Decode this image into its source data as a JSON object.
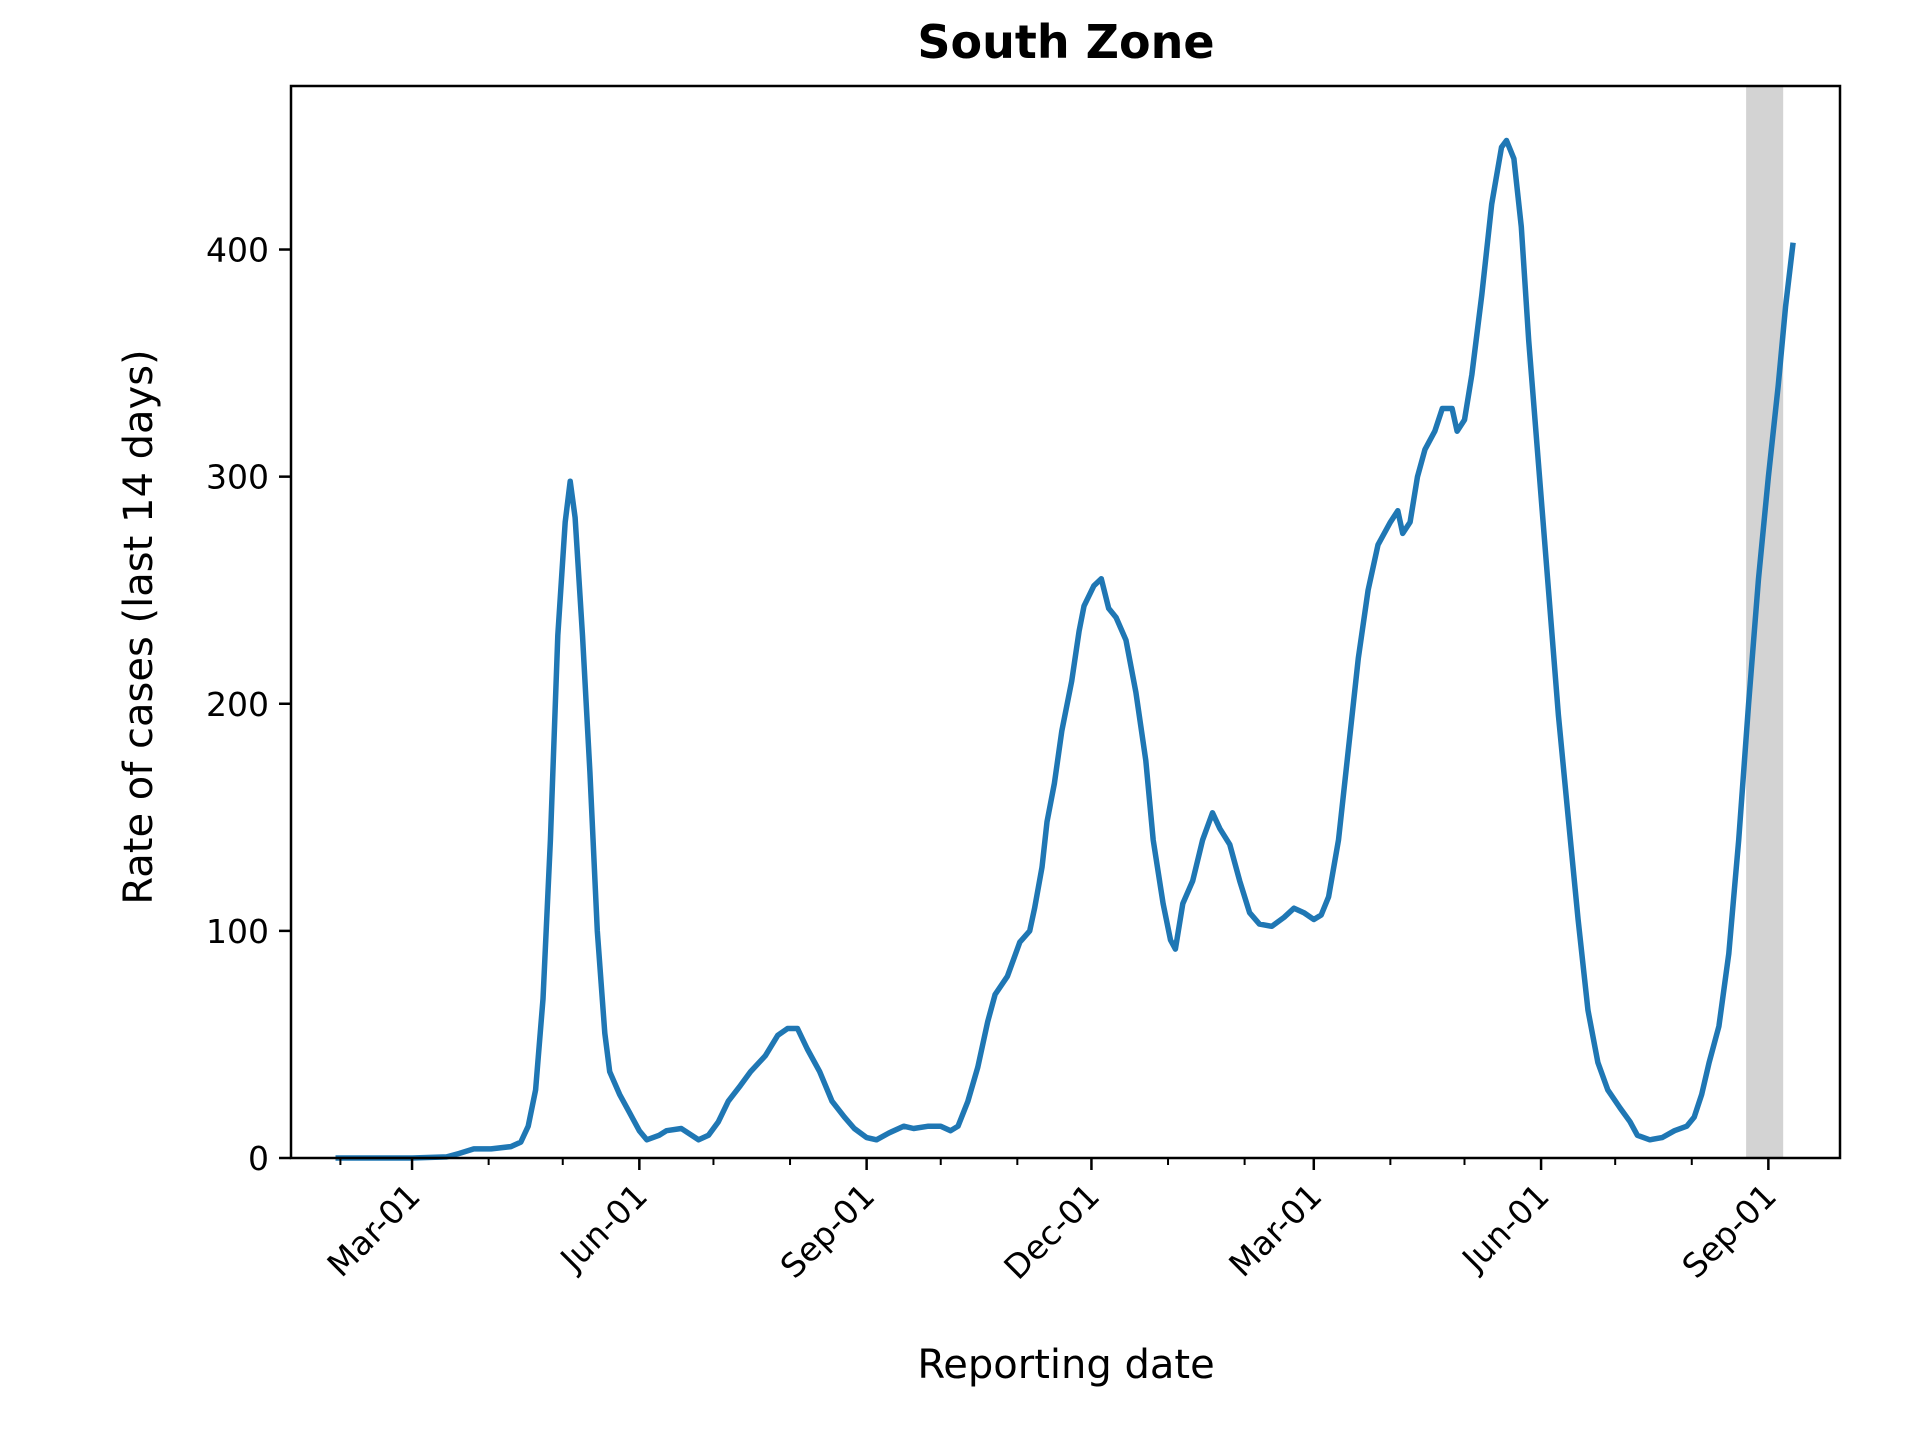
{
  "chart_data": {
    "type": "line",
    "title": "South Zone",
    "xlabel": "Reporting date",
    "ylabel": "Rate of cases (last 14 days)",
    "ylim": [
      0,
      472
    ],
    "xlim": [
      "2020-01-12",
      "2021-09-30"
    ],
    "y_ticks": [
      0,
      100,
      200,
      300,
      400
    ],
    "y_tick_labels": [
      "0",
      "100",
      "200",
      "300",
      "400"
    ],
    "x_ticks": [
      "2020-03-01",
      "2020-06-01",
      "2020-09-01",
      "2020-12-01",
      "2021-03-01",
      "2021-06-01",
      "2021-09-01"
    ],
    "x_tick_labels": [
      "Mar-01",
      "Jun-01",
      "Sep-01",
      "Dec-01",
      "Mar-01",
      "Jun-01",
      "Sep-01"
    ],
    "grid": false,
    "shaded_region": {
      "start": "2021-08-23",
      "end": "2021-09-07",
      "color": "#d3d3d3"
    },
    "series": [
      {
        "color": "#1f77b4",
        "points": [
          [
            "2020-01-30",
            0
          ],
          [
            "2020-02-15",
            0
          ],
          [
            "2020-03-01",
            0
          ],
          [
            "2020-03-15",
            0.5
          ],
          [
            "2020-03-20",
            2
          ],
          [
            "2020-03-26",
            4
          ],
          [
            "2020-04-02",
            4
          ],
          [
            "2020-04-10",
            5
          ],
          [
            "2020-04-14",
            7
          ],
          [
            "2020-04-17",
            14
          ],
          [
            "2020-04-20",
            30
          ],
          [
            "2020-04-23",
            70
          ],
          [
            "2020-04-26",
            140
          ],
          [
            "2020-04-29",
            230
          ],
          [
            "2020-05-02",
            280
          ],
          [
            "2020-05-04",
            298
          ],
          [
            "2020-05-06",
            282
          ],
          [
            "2020-05-09",
            230
          ],
          [
            "2020-05-12",
            170
          ],
          [
            "2020-05-15",
            100
          ],
          [
            "2020-05-18",
            55
          ],
          [
            "2020-05-20",
            38
          ],
          [
            "2020-05-24",
            28
          ],
          [
            "2020-05-28",
            20
          ],
          [
            "2020-06-01",
            12
          ],
          [
            "2020-06-04",
            8
          ],
          [
            "2020-06-09",
            10
          ],
          [
            "2020-06-12",
            12
          ],
          [
            "2020-06-18",
            13
          ],
          [
            "2020-06-25",
            8
          ],
          [
            "2020-06-29",
            10
          ],
          [
            "2020-07-03",
            16
          ],
          [
            "2020-07-07",
            25
          ],
          [
            "2020-07-12",
            32
          ],
          [
            "2020-07-16",
            38
          ],
          [
            "2020-07-22",
            45
          ],
          [
            "2020-07-27",
            54
          ],
          [
            "2020-07-31",
            57
          ],
          [
            "2020-08-04",
            57
          ],
          [
            "2020-08-08",
            48
          ],
          [
            "2020-08-13",
            38
          ],
          [
            "2020-08-18",
            25
          ],
          [
            "2020-08-23",
            18
          ],
          [
            "2020-08-27",
            13
          ],
          [
            "2020-09-01",
            9
          ],
          [
            "2020-09-05",
            8
          ],
          [
            "2020-09-10",
            11
          ],
          [
            "2020-09-16",
            14
          ],
          [
            "2020-09-20",
            13
          ],
          [
            "2020-09-26",
            14
          ],
          [
            "2020-10-01",
            14
          ],
          [
            "2020-10-05",
            12
          ],
          [
            "2020-10-08",
            14
          ],
          [
            "2020-10-12",
            25
          ],
          [
            "2020-10-16",
            40
          ],
          [
            "2020-10-20",
            60
          ],
          [
            "2020-10-23",
            72
          ],
          [
            "2020-10-28",
            80
          ],
          [
            "2020-11-02",
            95
          ],
          [
            "2020-11-06",
            100
          ],
          [
            "2020-11-08",
            110
          ],
          [
            "2020-11-11",
            128
          ],
          [
            "2020-11-13",
            148
          ],
          [
            "2020-11-16",
            165
          ],
          [
            "2020-11-19",
            188
          ],
          [
            "2020-11-23",
            210
          ],
          [
            "2020-11-26",
            232
          ],
          [
            "2020-11-28",
            243
          ],
          [
            "2020-12-02",
            252
          ],
          [
            "2020-12-05",
            255
          ],
          [
            "2020-12-08",
            242
          ],
          [
            "2020-12-11",
            238
          ],
          [
            "2020-12-15",
            228
          ],
          [
            "2020-12-19",
            205
          ],
          [
            "2020-12-23",
            175
          ],
          [
            "2020-12-26",
            140
          ],
          [
            "2020-12-30",
            112
          ],
          [
            "2021-01-02",
            96
          ],
          [
            "2021-01-04",
            92
          ],
          [
            "2021-01-07",
            112
          ],
          [
            "2021-01-11",
            122
          ],
          [
            "2021-01-15",
            140
          ],
          [
            "2021-01-19",
            152
          ],
          [
            "2021-01-22",
            145
          ],
          [
            "2021-01-26",
            138
          ],
          [
            "2021-01-30",
            122
          ],
          [
            "2021-02-03",
            108
          ],
          [
            "2021-02-07",
            103
          ],
          [
            "2021-02-12",
            102
          ],
          [
            "2021-02-17",
            106
          ],
          [
            "2021-02-21",
            110
          ],
          [
            "2021-02-25",
            108
          ],
          [
            "2021-03-01",
            105
          ],
          [
            "2021-03-04",
            107
          ],
          [
            "2021-03-07",
            115
          ],
          [
            "2021-03-11",
            140
          ],
          [
            "2021-03-15",
            180
          ],
          [
            "2021-03-19",
            220
          ],
          [
            "2021-03-23",
            250
          ],
          [
            "2021-03-27",
            270
          ],
          [
            "2021-04-01",
            280
          ],
          [
            "2021-04-04",
            285
          ],
          [
            "2021-04-06",
            275
          ],
          [
            "2021-04-09",
            280
          ],
          [
            "2021-04-12",
            300
          ],
          [
            "2021-04-15",
            312
          ],
          [
            "2021-04-19",
            320
          ],
          [
            "2021-04-22",
            330
          ],
          [
            "2021-04-26",
            330
          ],
          [
            "2021-04-28",
            320
          ],
          [
            "2021-05-01",
            325
          ],
          [
            "2021-05-04",
            345
          ],
          [
            "2021-05-08",
            380
          ],
          [
            "2021-05-12",
            420
          ],
          [
            "2021-05-16",
            445
          ],
          [
            "2021-05-18",
            448
          ],
          [
            "2021-05-21",
            440
          ],
          [
            "2021-05-24",
            410
          ],
          [
            "2021-05-27",
            360
          ],
          [
            "2021-05-31",
            305
          ],
          [
            "2021-06-04",
            250
          ],
          [
            "2021-06-08",
            195
          ],
          [
            "2021-06-12",
            150
          ],
          [
            "2021-06-16",
            105
          ],
          [
            "2021-06-20",
            65
          ],
          [
            "2021-06-24",
            42
          ],
          [
            "2021-06-28",
            30
          ],
          [
            "2021-07-03",
            22
          ],
          [
            "2021-07-07",
            16
          ],
          [
            "2021-07-10",
            10
          ],
          [
            "2021-07-15",
            8
          ],
          [
            "2021-07-20",
            9
          ],
          [
            "2021-07-25",
            12
          ],
          [
            "2021-07-30",
            14
          ],
          [
            "2021-08-02",
            18
          ],
          [
            "2021-08-05",
            28
          ],
          [
            "2021-08-08",
            42
          ],
          [
            "2021-08-12",
            58
          ],
          [
            "2021-08-16",
            90
          ],
          [
            "2021-08-20",
            140
          ],
          [
            "2021-08-24",
            200
          ],
          [
            "2021-08-28",
            255
          ],
          [
            "2021-09-01",
            300
          ],
          [
            "2021-09-05",
            340
          ],
          [
            "2021-09-08",
            375
          ],
          [
            "2021-09-11",
            403
          ]
        ]
      }
    ]
  }
}
